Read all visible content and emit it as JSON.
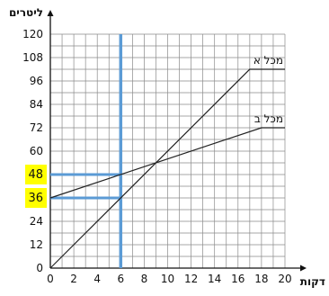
{
  "chart_data": {
    "type": "line",
    "xlabel": "דקות",
    "ylabel": "ליטרים",
    "xlim": [
      0,
      20
    ],
    "ylim": [
      0,
      120
    ],
    "x_ticks": [
      0,
      2,
      4,
      6,
      8,
      10,
      12,
      14,
      16,
      18,
      20
    ],
    "y_ticks": [
      0,
      12,
      24,
      36,
      48,
      60,
      72,
      84,
      96,
      108,
      120
    ],
    "grid": true,
    "series": [
      {
        "name": "מכל א",
        "color": "#222222",
        "points": [
          [
            0,
            0
          ],
          [
            17,
            102
          ],
          [
            20,
            102
          ]
        ]
      },
      {
        "name": "מכל ב",
        "color": "#222222",
        "points": [
          [
            0,
            36
          ],
          [
            18,
            72
          ],
          [
            20,
            72
          ]
        ]
      }
    ],
    "annotations": {
      "vertical_line_x": 6,
      "horizontal_lines": [
        {
          "y": 48,
          "x_end": 6
        },
        {
          "y": 36,
          "x_end": 6
        }
      ],
      "highlighted_y_labels": [
        "48",
        "36"
      ],
      "highlight_color": "#ffff00",
      "line_color": "#5b9bd5"
    }
  }
}
